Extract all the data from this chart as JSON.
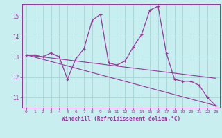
{
  "xlabel": "Windchill (Refroidissement éolien,°C)",
  "background_color": "#c8eef0",
  "grid_color": "#aad8d8",
  "line_color": "#993399",
  "xlim": [
    -0.5,
    23.5
  ],
  "ylim": [
    10.5,
    15.6
  ],
  "xticks": [
    0,
    1,
    2,
    3,
    4,
    5,
    6,
    7,
    8,
    9,
    10,
    11,
    12,
    13,
    14,
    15,
    16,
    17,
    18,
    19,
    20,
    21,
    22,
    23
  ],
  "yticks": [
    11,
    12,
    13,
    14,
    15
  ],
  "hours": [
    0,
    1,
    2,
    3,
    4,
    5,
    6,
    7,
    8,
    9,
    10,
    11,
    12,
    13,
    14,
    15,
    16,
    17,
    18,
    19,
    20,
    21,
    22,
    23
  ],
  "values": [
    13.1,
    13.1,
    13.0,
    13.2,
    13.0,
    11.9,
    12.9,
    13.4,
    14.8,
    15.1,
    12.7,
    12.6,
    12.8,
    13.5,
    14.1,
    15.3,
    15.5,
    13.2,
    11.9,
    11.8,
    11.8,
    11.6,
    11.0,
    10.6
  ],
  "trend1_start": 13.1,
  "trend1_end": 10.6,
  "trend2_start": 13.1,
  "trend2_end": 11.95
}
